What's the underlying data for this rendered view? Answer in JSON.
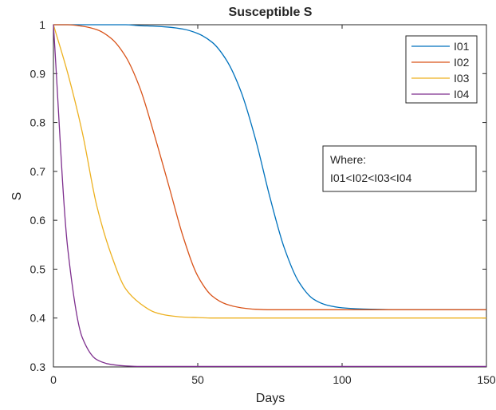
{
  "chart_data": {
    "type": "line",
    "title": "Susceptible  S",
    "xlabel": "Days",
    "ylabel": "S",
    "xlim": [
      0,
      150
    ],
    "ylim": [
      0.3,
      1
    ],
    "xticks": [
      0,
      50,
      100,
      150
    ],
    "xtick_labels": [
      "0",
      "50",
      "100",
      "150"
    ],
    "yticks": [
      0.3,
      0.4,
      0.5,
      0.6,
      0.7,
      0.8,
      0.9,
      1.0
    ],
    "ytick_labels": [
      "0.3",
      "0.4",
      "0.5",
      "0.6",
      "0.7",
      "0.8",
      "0.9",
      "1"
    ],
    "grid": false,
    "legend_position": "top-right",
    "annotation": {
      "lines": [
        "Where:",
        "I01<I02<I03<I04"
      ]
    },
    "x": [
      0,
      5,
      10,
      15,
      20,
      25,
      30,
      35,
      40,
      45,
      50,
      55,
      60,
      65,
      70,
      75,
      80,
      85,
      90,
      95,
      100,
      110,
      120,
      130,
      140,
      150
    ],
    "series": [
      {
        "name": "I01",
        "color": "#0072BD",
        "values": [
          1.0,
          1.0,
          1.0,
          1.0,
          1.0,
          1.0,
          0.998,
          0.997,
          0.995,
          0.991,
          0.982,
          0.964,
          0.927,
          0.863,
          0.766,
          0.647,
          0.543,
          0.474,
          0.439,
          0.426,
          0.421,
          0.418,
          0.417,
          0.417,
          0.417,
          0.417
        ]
      },
      {
        "name": "I02",
        "color": "#D95319",
        "values": [
          1.0,
          1.0,
          0.997,
          0.99,
          0.972,
          0.935,
          0.87,
          0.774,
          0.67,
          0.565,
          0.486,
          0.445,
          0.428,
          0.421,
          0.418,
          0.417,
          0.417,
          0.417,
          0.417,
          0.417,
          0.417,
          0.417,
          0.417,
          0.417,
          0.417,
          0.417
        ]
      },
      {
        "name": "I03",
        "color": "#EDB120",
        "values": [
          1.0,
          0.9,
          0.78,
          0.63,
          0.53,
          0.46,
          0.43,
          0.412,
          0.405,
          0.402,
          0.401,
          0.4,
          0.4,
          0.4,
          0.4,
          0.4,
          0.4,
          0.4,
          0.4,
          0.4,
          0.4,
          0.4,
          0.4,
          0.4,
          0.4,
          0.4
        ]
      },
      {
        "name": "I04",
        "color": "#7E2F8E",
        "values": [
          1.0,
          0.54,
          0.36,
          0.315,
          0.305,
          0.302,
          0.301,
          0.301,
          0.301,
          0.301,
          0.301,
          0.301,
          0.301,
          0.301,
          0.301,
          0.301,
          0.301,
          0.301,
          0.301,
          0.301,
          0.301,
          0.301,
          0.301,
          0.301,
          0.301,
          0.301
        ]
      }
    ]
  }
}
